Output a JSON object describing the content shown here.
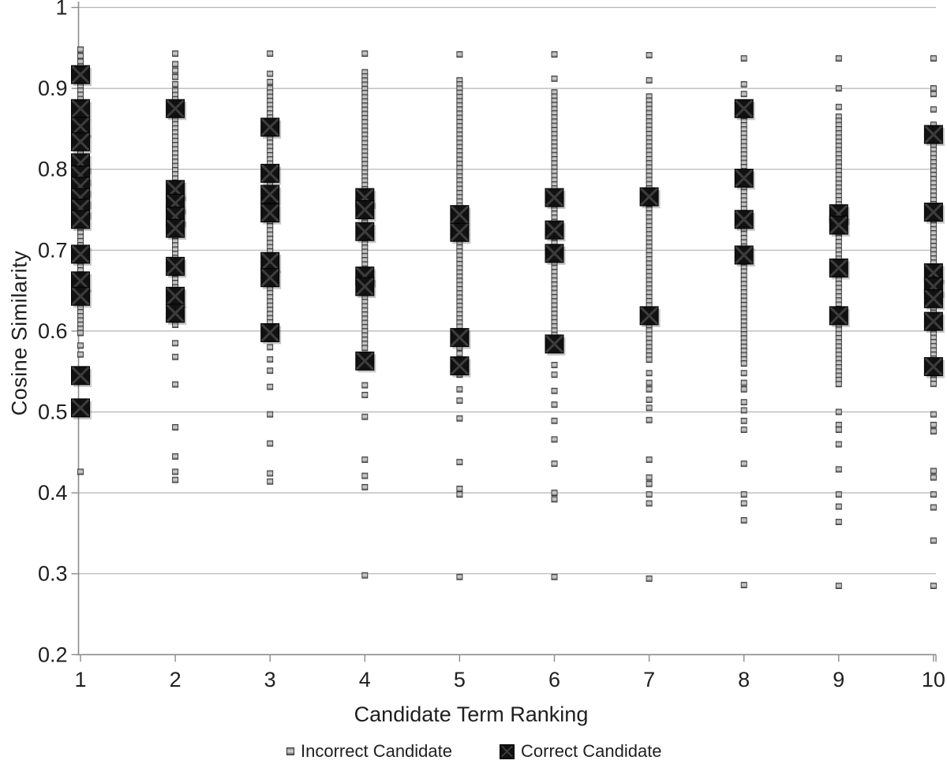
{
  "chart_data": {
    "type": "scatter",
    "title": "",
    "xlabel": "Candidate Term Ranking",
    "ylabel": "Cosine Similarity",
    "x_categories": [
      "1",
      "2",
      "3",
      "4",
      "5",
      "6",
      "7",
      "8",
      "9",
      "10"
    ],
    "y_ticks": [
      "1",
      "0.9",
      "0.8",
      "0.7",
      "0.6",
      "0.5",
      "0.4",
      "0.3",
      "0.2"
    ],
    "ylim": [
      0.2,
      1.0
    ],
    "xlim_categories": 10,
    "grid": "horizontal-only",
    "legend": {
      "position": "bottom",
      "items": [
        {
          "label": "Incorrect Candidate",
          "series": "incorrect",
          "marker": "small-gray-square"
        },
        {
          "label": "Correct Candidate",
          "series": "correct",
          "marker": "large-black-square-x"
        }
      ]
    },
    "colors": {
      "correct_marker": "#111111",
      "incorrect_marker": "#6e6e6e",
      "gridline": "#b3b3b3",
      "axis": "#8c8c8c",
      "text": "#1f1f1f"
    },
    "series": [
      {
        "name": "Incorrect Candidate",
        "marker": "small-gray-square",
        "columns": [
          {
            "x": 1,
            "dense_range": [
              0.923,
              0.595
            ],
            "points": [
              0.948,
              0.94,
              0.933,
              0.927,
              0.582,
              0.571,
              0.426
            ]
          },
          {
            "x": 2,
            "dense_range": [
              0.897,
              0.605
            ],
            "points": [
              0.943,
              0.93,
              0.922,
              0.914,
              0.905,
              0.585,
              0.568,
              0.534,
              0.481,
              0.445,
              0.426,
              0.416
            ]
          },
          {
            "x": 3,
            "dense_range": [
              0.9,
              0.585
            ],
            "points": [
              0.943,
              0.918,
              0.908,
              0.58,
              0.565,
              0.551,
              0.531,
              0.497,
              0.461,
              0.424,
              0.414
            ]
          },
          {
            "x": 4,
            "dense_range": [
              0.92,
              0.577
            ],
            "points": [
              0.943,
              0.533,
              0.521,
              0.494,
              0.441,
              0.421,
              0.407,
              0.298
            ]
          },
          {
            "x": 5,
            "dense_range": [
              0.91,
              0.575
            ],
            "points": [
              0.942,
              0.572,
              0.546,
              0.528,
              0.514,
              0.492,
              0.438,
              0.405,
              0.398,
              0.296
            ]
          },
          {
            "x": 6,
            "dense_range": [
              0.895,
              0.58
            ],
            "points": [
              0.942,
              0.912,
              0.558,
              0.546,
              0.526,
              0.509,
              0.489,
              0.466,
              0.436,
              0.4,
              0.392,
              0.296
            ]
          },
          {
            "x": 7,
            "dense_range": [
              0.89,
              0.56
            ],
            "points": [
              0.941,
              0.91,
              0.548,
              0.536,
              0.528,
              0.515,
              0.505,
              0.49,
              0.441,
              0.419,
              0.411,
              0.398,
              0.387,
              0.294
            ]
          },
          {
            "x": 8,
            "dense_range": [
              0.875,
              0.558
            ],
            "points": [
              0.937,
              0.905,
              0.893,
              0.548,
              0.536,
              0.528,
              0.512,
              0.502,
              0.489,
              0.478,
              0.436,
              0.398,
              0.387,
              0.366,
              0.286
            ]
          },
          {
            "x": 9,
            "dense_range": [
              0.865,
              0.53
            ],
            "points": [
              0.937,
              0.9,
              0.877,
              0.5,
              0.484,
              0.478,
              0.46,
              0.429,
              0.398,
              0.383,
              0.364,
              0.285
            ]
          },
          {
            "x": 10,
            "dense_range": [
              0.855,
              0.534
            ],
            "points": [
              0.937,
              0.9,
              0.893,
              0.874,
              0.497,
              0.484,
              0.476,
              0.427,
              0.419,
              0.398,
              0.382,
              0.341,
              0.285
            ]
          }
        ]
      },
      {
        "name": "Correct Candidate",
        "marker": "large-black-square-x",
        "columns": [
          {
            "x": 1,
            "points": [
              0.917,
              0.875,
              0.853,
              0.834,
              0.808,
              0.793,
              0.779,
              0.765,
              0.752,
              0.738,
              0.695,
              0.662,
              0.643,
              0.545,
              0.505
            ]
          },
          {
            "x": 2,
            "points": [
              0.875,
              0.775,
              0.758,
              0.742,
              0.727,
              0.68,
              0.643,
              0.622
            ]
          },
          {
            "x": 3,
            "points": [
              0.852,
              0.795,
              0.769,
              0.746,
              0.686,
              0.666,
              0.598
            ]
          },
          {
            "x": 4,
            "points": [
              0.765,
              0.75,
              0.723,
              0.668,
              0.655,
              0.563
            ]
          },
          {
            "x": 5,
            "points": [
              0.744,
              0.722,
              0.592,
              0.557
            ]
          },
          {
            "x": 6,
            "points": [
              0.765,
              0.725,
              0.696,
              0.584
            ]
          },
          {
            "x": 7,
            "points": [
              0.766,
              0.619
            ]
          },
          {
            "x": 8,
            "points": [
              0.875,
              0.789,
              0.738,
              0.694
            ]
          },
          {
            "x": 9,
            "points": [
              0.745,
              0.731,
              0.678,
              0.619
            ]
          },
          {
            "x": 10,
            "points": [
              0.843,
              0.747,
              0.672,
              0.655,
              0.64,
              0.612,
              0.556
            ]
          }
        ]
      }
    ]
  }
}
